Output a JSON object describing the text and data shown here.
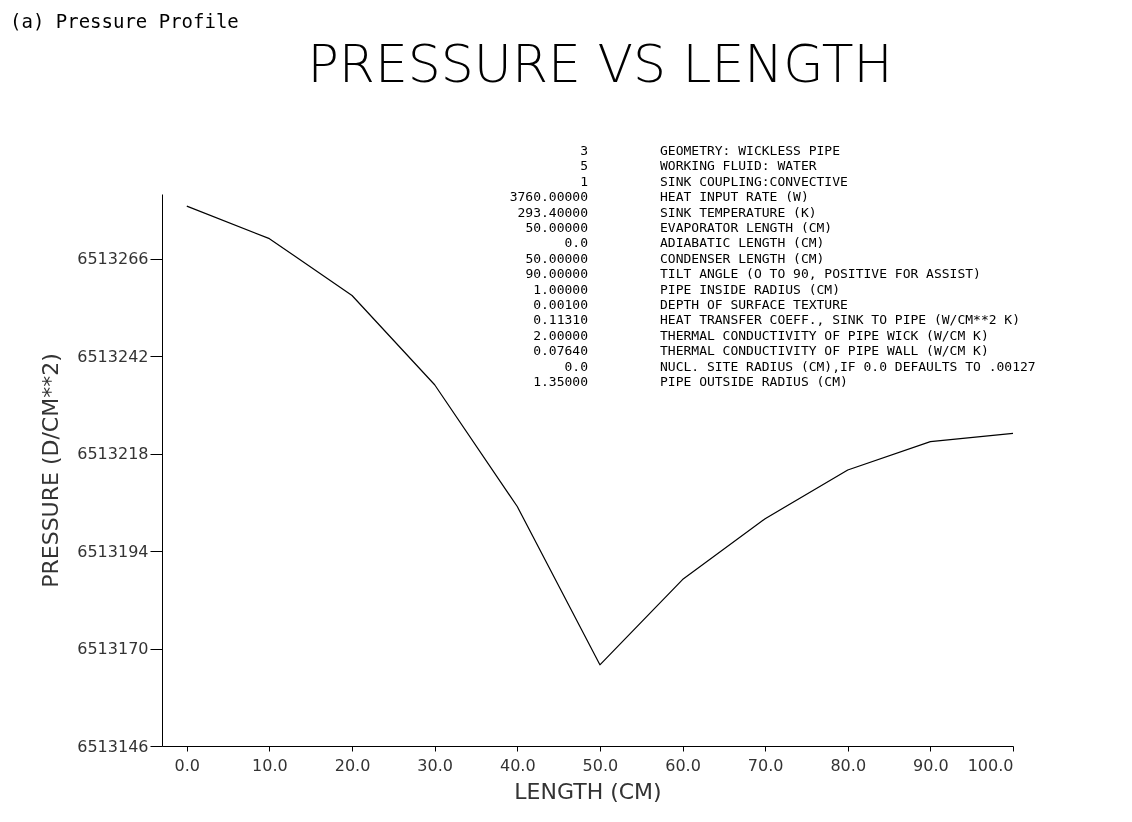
{
  "chart_data": {
    "type": "line",
    "title": "(a)  Pressure Profile",
    "subtitle": "PRESSURE VS LENGTH",
    "xlabel": "LENGTH (CM)",
    "ylabel": "PRESSURE (D/CM**2)",
    "x": [
      0,
      10,
      20,
      30,
      40,
      50,
      60,
      70,
      80,
      90,
      100
    ],
    "series": [
      {
        "color": "#000000",
        "values": [
          6513279,
          6513271,
          6513257,
          6513235,
          6513205,
          6513166,
          6513187,
          6513202,
          6513214,
          6513221,
          6513223
        ]
      }
    ],
    "xlim": [
      -3,
      100
    ],
    "xticks": [
      {
        "value": 0,
        "label": "0.0"
      },
      {
        "value": 10,
        "label": "10.0"
      },
      {
        "value": 20,
        "label": "20.0"
      },
      {
        "value": 30,
        "label": "30.0"
      },
      {
        "value": 40,
        "label": "40.0"
      },
      {
        "value": 50,
        "label": "50.0"
      },
      {
        "value": 60,
        "label": "60.0"
      },
      {
        "value": 70,
        "label": "70.0"
      },
      {
        "value": 80,
        "label": "80.0"
      },
      {
        "value": 90,
        "label": "90.0"
      },
      {
        "value": 100,
        "label": "100.0"
      }
    ],
    "ylim": [
      6513146,
      6513282
    ],
    "yticks": [
      6513146,
      6513170,
      6513194,
      6513218,
      6513242,
      6513266
    ],
    "grid": false,
    "marker": "none",
    "line_style": "solid",
    "annotations": [
      "3",
      "GEOMETRY: WICKLESS PIPE",
      "5",
      "WORKING FLUID: WATER",
      "1",
      "SINK COUPLING:CONVECTIVE",
      "3760.00000",
      "HEAT INPUT RATE (W)",
      "293.40000",
      "SINK TEMPERATURE (K)",
      "50.00000",
      "EVAPORATOR LENGTH (CM)",
      "0.0",
      "ADIABATIC LENGTH (CM)",
      "50.00000",
      "CONDENSER LENGTH (CM)",
      "90.00000",
      "TILT ANGLE (O TO 90, POSITIVE FOR ASSIST)",
      "1.00000",
      "PIPE INSIDE RADIUS (CM)",
      "0.00100",
      "DEPTH OF SURFACE TEXTURE",
      "0.11310",
      "HEAT TRANSFER COEFF., SINK TO PIPE (W/CM**2 K)",
      "2.00000",
      "THERMAL CONDUCTIVITY OF PIPE WICK (W/CM K)",
      "0.07640",
      "THERMAL CONDUCTIVITY OF PIPE WALL (W/CM K)",
      "0.0",
      "NUCL. SITE RADIUS (CM),IF 0.0 DEFAULTS TO .00127",
      "1.35000",
      "PIPE OUTSIDE RADIUS (CM)"
    ]
  }
}
